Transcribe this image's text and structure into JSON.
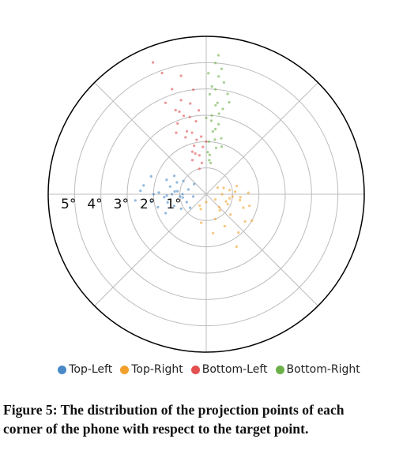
{
  "chart_data": {
    "type": "scatter",
    "projection": "polar",
    "radial_ticks": [
      "1°",
      "2°",
      "3°",
      "4°",
      "5°"
    ],
    "radial_range": [
      0,
      6
    ],
    "angular_gridline_step_deg": 45,
    "legend_placement": "bottom",
    "series": [
      {
        "name": "Top-Left",
        "color": "#4a89c8",
        "points": [
          [
            0.9,
            270
          ],
          [
            1.2,
            275
          ],
          [
            1.5,
            268
          ],
          [
            0.7,
            285
          ],
          [
            1.8,
            272
          ],
          [
            2.1,
            262
          ],
          [
            1.0,
            300
          ],
          [
            1.3,
            250
          ],
          [
            0.5,
            260
          ],
          [
            2.4,
            278
          ],
          [
            1.6,
            290
          ],
          [
            1.1,
            240
          ],
          [
            0.8,
            230
          ],
          [
            1.9,
            255
          ],
          [
            2.7,
            265
          ],
          [
            1.4,
            282
          ],
          [
            0.6,
            310
          ],
          [
            2.2,
            288
          ],
          [
            1.7,
            245
          ],
          [
            1.0,
            265
          ],
          [
            1.3,
            270
          ],
          [
            1.1,
            276
          ],
          [
            0.9,
            262
          ],
          [
            1.5,
            258
          ],
          [
            2.0,
            270
          ],
          [
            1.2,
            292
          ],
          [
            0.8,
            248
          ],
          [
            1.6,
            266
          ],
          [
            2.5,
            273
          ],
          [
            1.4,
            300
          ]
        ]
      },
      {
        "name": "Top-Right",
        "color": "#f2a02c",
        "points": [
          [
            0.6,
            90
          ],
          [
            0.9,
            100
          ],
          [
            1.1,
            85
          ],
          [
            0.4,
            120
          ],
          [
            1.3,
            95
          ],
          [
            0.8,
            140
          ],
          [
            1.5,
            110
          ],
          [
            0.7,
            70
          ],
          [
            1.0,
            160
          ],
          [
            1.7,
            105
          ],
          [
            0.5,
            60
          ],
          [
            1.2,
            130
          ],
          [
            0.9,
            80
          ],
          [
            1.4,
            150
          ],
          [
            2.0,
            120
          ],
          [
            0.3,
            180
          ],
          [
            1.1,
            190
          ],
          [
            0.8,
            110
          ],
          [
            1.6,
            88
          ],
          [
            1.9,
            140
          ],
          [
            0.6,
            200
          ],
          [
            1.0,
            95
          ],
          [
            1.2,
            75
          ],
          [
            0.7,
            135
          ],
          [
            1.5,
            170
          ],
          [
            2.3,
            150
          ],
          [
            0.9,
            115
          ],
          [
            1.3,
            100
          ],
          [
            0.5,
            210
          ],
          [
            1.8,
            125
          ]
        ]
      },
      {
        "name": "Bottom-Left",
        "color": "#e35050",
        "points": [
          [
            1.2,
            352
          ],
          [
            1.6,
            345
          ],
          [
            2.1,
            350
          ],
          [
            2.5,
            343
          ],
          [
            3.0,
            348
          ],
          [
            3.4,
            340
          ],
          [
            1.8,
            356
          ],
          [
            2.8,
            352
          ],
          [
            3.7,
            345
          ],
          [
            4.2,
            342
          ],
          [
            1.4,
            338
          ],
          [
            2.3,
            340
          ],
          [
            3.2,
            355
          ],
          [
            4.6,
            348
          ],
          [
            2.0,
            0
          ],
          [
            1.0,
            345
          ],
          [
            2.6,
            334
          ],
          [
            3.5,
            350
          ],
          [
            1.9,
            346
          ],
          [
            2.9,
            338
          ],
          [
            4.0,
            353
          ],
          [
            3.1,
            344
          ],
          [
            1.5,
            350
          ],
          [
            2.4,
            347
          ],
          [
            3.8,
            336
          ],
          [
            4.9,
            340
          ],
          [
            2.2,
            355
          ],
          [
            3.3,
            342
          ],
          [
            5.4,
            338
          ],
          [
            1.7,
            342
          ]
        ]
      },
      {
        "name": "Bottom-Right",
        "color": "#6db04a",
        "points": [
          [
            1.5,
            5
          ],
          [
            2.0,
            3
          ],
          [
            2.5,
            8
          ],
          [
            3.0,
            4
          ],
          [
            3.5,
            7
          ],
          [
            4.0,
            5
          ],
          [
            4.5,
            6
          ],
          [
            1.8,
            12
          ],
          [
            2.7,
            10
          ],
          [
            3.8,
            2
          ],
          [
            5.0,
            4
          ],
          [
            1.2,
            8
          ],
          [
            2.2,
            15
          ],
          [
            3.3,
            11
          ],
          [
            4.3,
            9
          ],
          [
            2.9,
            0
          ],
          [
            1.6,
            2
          ],
          [
            3.6,
            14
          ],
          [
            4.8,
            7
          ],
          [
            2.4,
            6
          ],
          [
            3.1,
            9
          ],
          [
            4.1,
            3
          ],
          [
            1.9,
            18
          ],
          [
            5.3,
            5
          ],
          [
            2.8,
            4
          ],
          [
            3.9,
            12
          ],
          [
            1.3,
            5
          ],
          [
            4.6,
            1
          ],
          [
            3.4,
            6
          ],
          [
            2.1,
            9
          ]
        ]
      }
    ]
  },
  "caption": {
    "line1": "Figure 5: The distribution of the projection points of each",
    "line2": "corner of the phone with respect to the target point."
  }
}
